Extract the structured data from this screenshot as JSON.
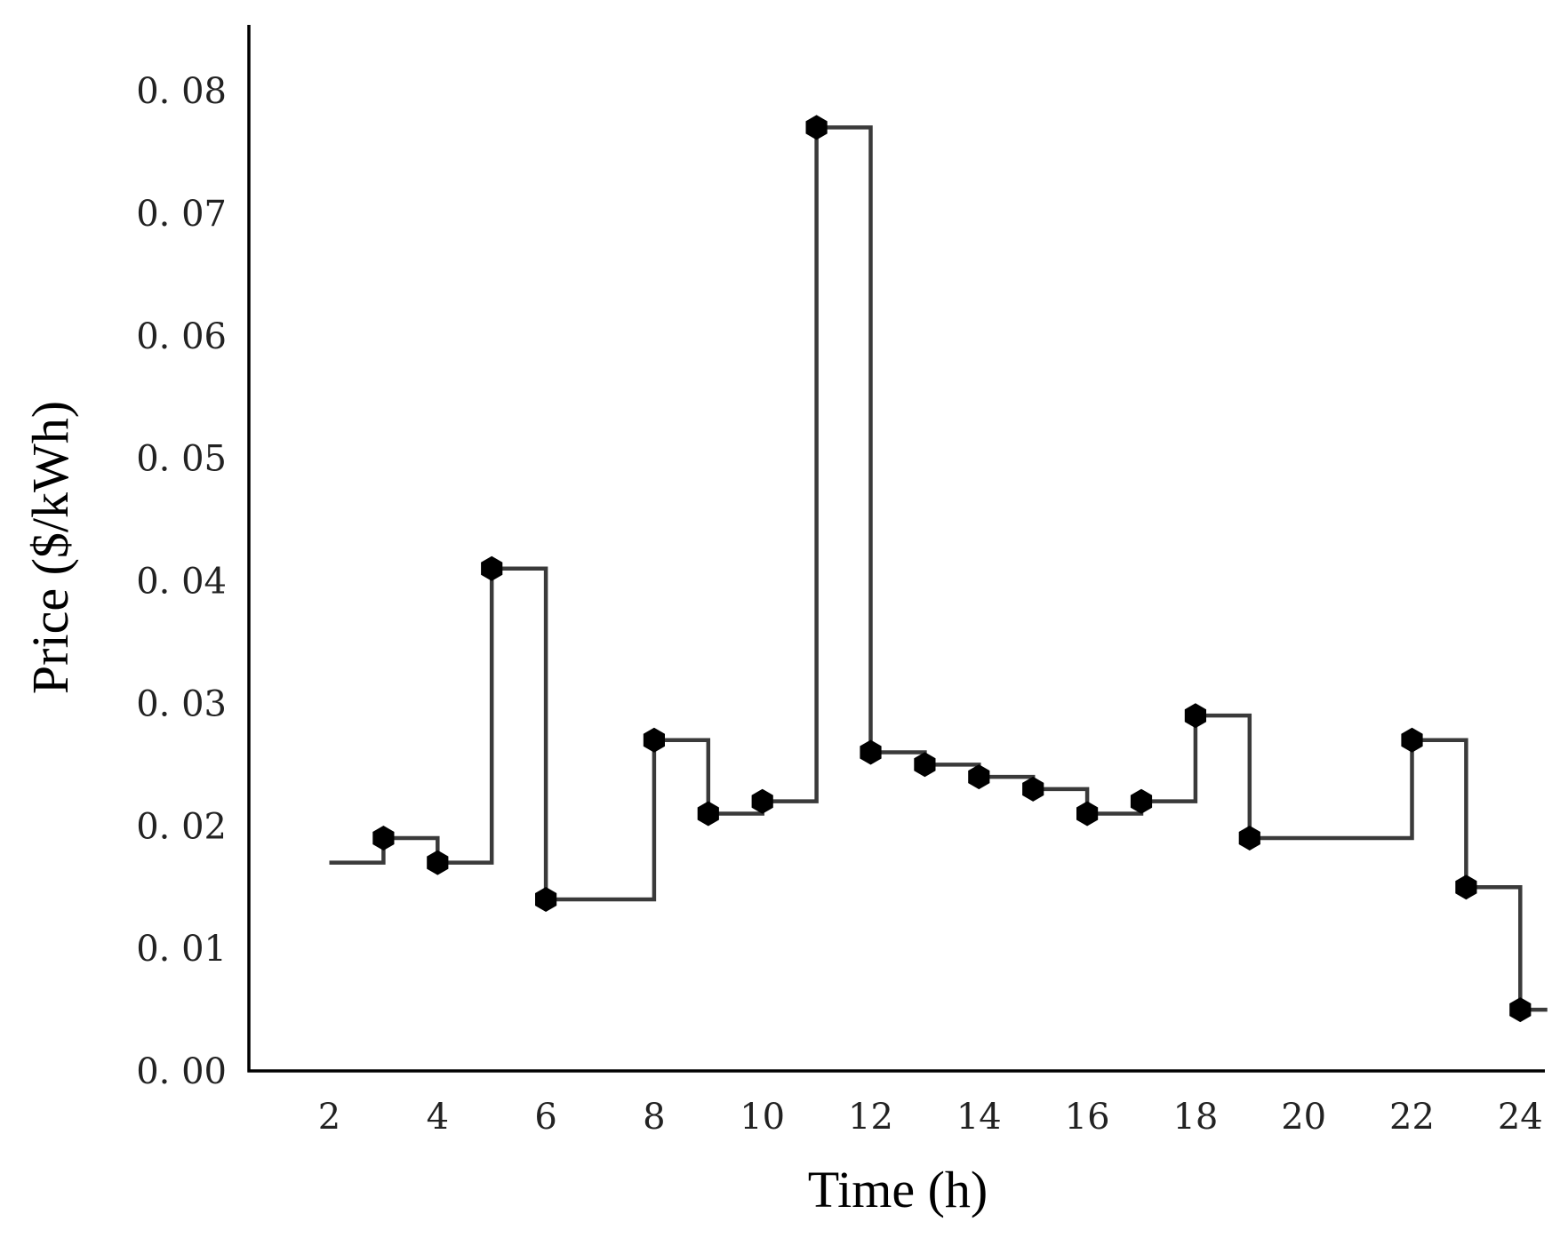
{
  "chart_data": {
    "type": "line",
    "style": "step-post",
    "title": "",
    "xlabel": "Time (h)",
    "ylabel": "Price ($/kWh)",
    "xlim": [
      0.5,
      24.3
    ],
    "ylim": [
      0,
      0.085
    ],
    "xticks": [
      2,
      4,
      6,
      8,
      10,
      12,
      14,
      16,
      18,
      20,
      22,
      24
    ],
    "xtick_labels": [
      "2",
      "4",
      "6",
      "8",
      "10",
      "12",
      "14",
      "16",
      "18",
      "20",
      "22",
      "24"
    ],
    "yticks": [
      0,
      0.01,
      0.02,
      0.03,
      0.04,
      0.05,
      0.06,
      0.07,
      0.08
    ],
    "ytick_labels": [
      "0. 00",
      "0. 01",
      "0. 02",
      "0. 03",
      "0. 04",
      "0. 05",
      "0. 06",
      "0. 07",
      "0. 08"
    ],
    "line_color": "#3a3a3a",
    "marker_color": "#000000",
    "marker_shape": "hexagon",
    "series": [
      {
        "name": "Price",
        "x": [
          2,
          3,
          4,
          5,
          6,
          7,
          8,
          9,
          10,
          11,
          12,
          13,
          14,
          15,
          16,
          17,
          18,
          19,
          20,
          21,
          22,
          23,
          24
        ],
        "values": [
          0.017,
          0.019,
          0.017,
          0.041,
          0.014,
          0.014,
          0.027,
          0.021,
          0.022,
          0.077,
          0.026,
          0.025,
          0.024,
          0.023,
          0.021,
          0.022,
          0.029,
          0.019,
          0.019,
          0.019,
          0.027,
          0.015,
          0.005
        ],
        "markers": [
          false,
          true,
          true,
          true,
          true,
          false,
          true,
          true,
          true,
          true,
          true,
          true,
          true,
          true,
          true,
          true,
          true,
          true,
          false,
          false,
          true,
          true,
          true
        ],
        "extend_to": 24.5
      }
    ]
  }
}
